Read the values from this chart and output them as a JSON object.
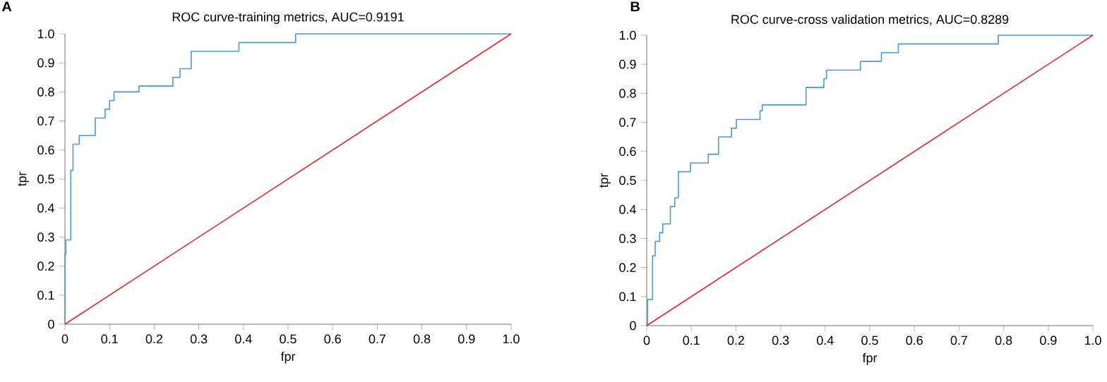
{
  "chart_data": [
    {
      "type": "line",
      "title": "ROC curve-training metrics, AUC=0.9191",
      "xlabel": "fpr",
      "ylabel": "tpr",
      "annotations": [
        "A"
      ],
      "xlim": [
        0,
        1
      ],
      "ylim": [
        0,
        1
      ],
      "xticks": [
        0,
        0.1,
        0.2,
        0.3,
        0.4,
        0.5,
        0.6,
        0.7,
        0.8,
        0.9,
        {
          "value": 1,
          "label": "1.0"
        }
      ],
      "yticks": [
        0,
        0.1,
        0.2,
        0.3,
        0.4,
        0.5,
        0.6,
        0.7,
        0.8,
        0.9,
        {
          "value": 1,
          "label": "1.0"
        }
      ],
      "series": [
        {
          "type": "step",
          "color": "#4a9ad6",
          "x": [
            0,
            0,
            0.002,
            0.013,
            0.018,
            0.032,
            0.068,
            0.09,
            0.1,
            0.11,
            0.166,
            0.242,
            0.258,
            0.283,
            0.39,
            0.517,
            1
          ],
          "values": [
            0,
            0.24,
            0.29,
            0.53,
            0.62,
            0.65,
            0.71,
            0.74,
            0.77,
            0.8,
            0.82,
            0.85,
            0.88,
            0.94,
            0.97,
            1,
            1
          ]
        },
        {
          "type": "line",
          "color": "#e8242f",
          "x": [
            0,
            1
          ],
          "values": [
            0,
            1
          ]
        }
      ]
    },
    {
      "type": "line",
      "title": "ROC curve-cross validation metrics, AUC=0.8289",
      "xlabel": "fpr",
      "ylabel": "tpr",
      "annotations": [
        "B"
      ],
      "xlim": [
        0,
        1
      ],
      "ylim": [
        0,
        1
      ],
      "xticks": [
        0,
        0.1,
        0.2,
        0.3,
        0.4,
        0.5,
        0.6,
        0.7,
        0.8,
        0.9,
        {
          "value": 1,
          "label": "1.0"
        }
      ],
      "yticks": [
        0,
        0.1,
        0.2,
        0.3,
        0.4,
        0.5,
        0.6,
        0.7,
        0.8,
        0.9,
        {
          "value": 1,
          "label": "1.0"
        }
      ],
      "series": [
        {
          "type": "step",
          "color": "#4a9ad6",
          "x": [
            0,
            0.002,
            0.013,
            0.019,
            0.029,
            0.036,
            0.053,
            0.063,
            0.071,
            0.098,
            0.138,
            0.161,
            0.19,
            0.201,
            0.254,
            0.259,
            0.357,
            0.397,
            0.403,
            0.479,
            0.526,
            0.564,
            0.788,
            1
          ],
          "values": [
            0,
            0.09,
            0.24,
            0.29,
            0.32,
            0.35,
            0.41,
            0.44,
            0.53,
            0.56,
            0.59,
            0.65,
            0.68,
            0.71,
            0.74,
            0.76,
            0.82,
            0.85,
            0.88,
            0.91,
            0.94,
            0.97,
            1,
            1
          ]
        },
        {
          "type": "line",
          "color": "#e8242f",
          "x": [
            0,
            1
          ],
          "values": [
            0,
            1
          ]
        }
      ]
    }
  ]
}
